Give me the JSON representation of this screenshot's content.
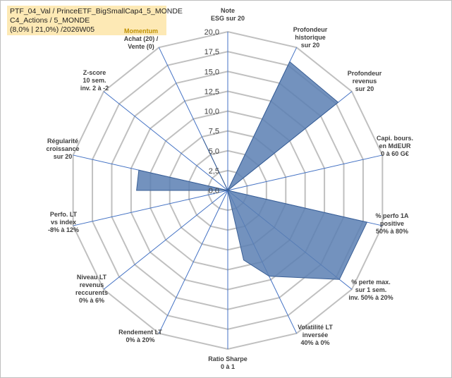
{
  "info_box": {
    "line1": "PTF_04_Val / PrinceETF_BigSmallCap4_5_MONDE",
    "line2": "C4_Actions / 5_MONDE",
    "line3": "(8,0% | 21,0%) /2026W05"
  },
  "chart_data": {
    "type": "radar",
    "title": "",
    "rmax": 20,
    "rlim": [
      0,
      20
    ],
    "tick_labels": [
      "0,0",
      "2,5",
      "5,0",
      "7,5",
      "10,0",
      "12,5",
      "15,0",
      "17,5",
      "20,0"
    ],
    "tick_values": [
      0,
      2.5,
      5,
      7.5,
      10,
      12.5,
      15,
      17.5,
      20
    ],
    "grid": true,
    "colors": {
      "fill": "#5b7fb3",
      "stroke": "#3a5f95",
      "grid": "#c0c0c0",
      "spoke": "#4472c4",
      "highlight_label": "#bf9000"
    },
    "axes": [
      {
        "label": [
          "Note",
          "ESG sur 20"
        ],
        "value": 0
      },
      {
        "label": [
          "Profondeur",
          "historique",
          "sur 20"
        ],
        "value": 18.0
      },
      {
        "label": [
          "Profondeur",
          "revenus",
          "sur 20"
        ],
        "value": 17.8
      },
      {
        "label": [
          "Capi. bours.",
          "en MdEUR",
          "0 à 60 G€"
        ],
        "value": 0
      },
      {
        "label": [
          "% perfo 1A",
          "positive",
          "50% à 80%"
        ],
        "value": 18.0
      },
      {
        "label": [
          "% perte max.",
          "sur 1 sem.",
          "inv. 50% à 20%"
        ],
        "value": 18.0
      },
      {
        "label": [
          "Volatilité LT",
          "inversée",
          "40% à 0%"
        ],
        "value": 12.0
      },
      {
        "label": [
          "Ratio Sharpe",
          "0 à 1"
        ],
        "value": 0
      },
      {
        "label": [
          "Rendement LT",
          "0% à 20%"
        ],
        "value": 0
      },
      {
        "label": [
          "Niveau LT",
          "revenus",
          "reccurents",
          "0% à 6%"
        ],
        "value": 0
      },
      {
        "label": [
          "Perfo. LT",
          "vs index",
          "-8% à 12%"
        ],
        "value": 0
      },
      {
        "label": [
          "Régularité",
          "croissance",
          "sur 20"
        ],
        "value": 11.5
      },
      {
        "label": [
          "Z-score",
          "10 sem.",
          "inv. 2 à -2"
        ],
        "value": 0
      },
      {
        "label": [
          "Momentum",
          "Achat (20) /",
          "Vente (0)"
        ],
        "value": 7.2
      }
    ],
    "extra_values": [
      {
        "between_axes": [
          "Volatilité LT",
          "Ratio Sharpe"
        ],
        "value": 9.0
      },
      {
        "between_axes": [
          "Perfo. LT",
          "Régularité"
        ],
        "value": 11.5
      }
    ]
  }
}
